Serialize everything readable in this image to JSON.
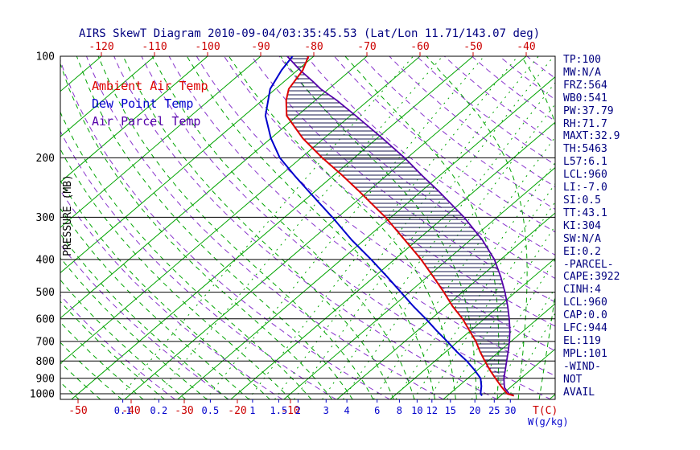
{
  "title": "AIRS SkewT Diagram 2010-09-04/03:35:45.53 (Lat/Lon 11.71/143.07 deg)",
  "legend": [
    {
      "label": "Ambient Air Temp",
      "color": "#dd0000"
    },
    {
      "label": "Dew Point Temp",
      "color": "#0000cc"
    },
    {
      "label": "Air Parcel Temp",
      "color": "#5500aa"
    }
  ],
  "stats": [
    "TP:100",
    "MW:N/A",
    "FRZ:564",
    "WB0:541",
    "PW:37.79",
    "RH:71.7",
    "MAXT:32.9",
    "TH:5463",
    "L57:6.1",
    "LCL:960",
    "LI:-7.0",
    "SI:0.5",
    "TT:43.1",
    "KI:304",
    "SW:N/A",
    "EI:0.2",
    "-PARCEL-",
    "CAPE:3922",
    "CINH:4",
    "LCL:960",
    "CAP:0.0",
    "LFC:944",
    "EL:119",
    "MPL:101",
    "-WIND-",
    "NOT",
    "AVAIL"
  ],
  "colors": {
    "title": "#000080",
    "stats": "#000080",
    "isotherm": "#00a400",
    "moist_adiabat": "#00a400",
    "mixing_ratio": "#00a400",
    "dry_adiabat": "#8833cc",
    "pressure_line": "#000000",
    "frame": "#000000",
    "hatch": "#15154d",
    "top_label": "#cc0000",
    "bottom_temp_label": "#cc0000",
    "mixing_label": "#0000cc",
    "pressure_label": "#000000"
  },
  "chart_data": {
    "type": "line",
    "chart_kind": "skewt_log_p",
    "x_axis": {
      "unit_label": "T(C)",
      "top_ticks": [
        -120,
        -110,
        -100,
        -90,
        -80,
        -70,
        -60,
        -50,
        -40
      ],
      "bottom_ticks": [
        -50,
        -40,
        -30,
        -20,
        -10
      ],
      "mixing_ratio_ticks": [
        0.1,
        0.2,
        0.5,
        1,
        1.5,
        2,
        3,
        4,
        6,
        8,
        10,
        12,
        15,
        20,
        25,
        30
      ],
      "mixing_unit_label": "W(g/kg)"
    },
    "y_axis": {
      "label": "PRESSURE (MB)",
      "scale": "log",
      "ticks": [
        100,
        200,
        300,
        400,
        500,
        600,
        700,
        800,
        900,
        1000
      ],
      "range": [
        100,
        1040
      ]
    },
    "grid": {
      "isotherm_min": -200,
      "isotherm_max": 40,
      "isotherm_step": 10,
      "dry_adiabat_min_K": 240,
      "dry_adiabat_max_K": 450,
      "dry_adiabat_step_K": 10,
      "moist_adiabat_min_C": -55,
      "moist_adiabat_max_C": 41,
      "moist_adiabat_step_C": 4
    },
    "series": [
      {
        "name": "Ambient Air Temp",
        "color": "#dd0000",
        "width": 2,
        "points": [
          [
            1013,
            32.5
          ],
          [
            1000,
            30.8
          ],
          [
            950,
            28.0
          ],
          [
            900,
            25.2
          ],
          [
            850,
            22.3
          ],
          [
            800,
            19.4
          ],
          [
            750,
            16.4
          ],
          [
            700,
            13.4
          ],
          [
            650,
            9.8
          ],
          [
            600,
            5.9
          ],
          [
            550,
            1.2
          ],
          [
            500,
            -3.5
          ],
          [
            450,
            -8.9
          ],
          [
            400,
            -15.0
          ],
          [
            350,
            -22.4
          ],
          [
            300,
            -31.0
          ],
          [
            250,
            -42.0
          ],
          [
            225,
            -48.5
          ],
          [
            200,
            -56.0
          ],
          [
            175,
            -64.0
          ],
          [
            150,
            -72.0
          ],
          [
            135,
            -75.5
          ],
          [
            125,
            -77.5
          ],
          [
            110,
            -79.0
          ],
          [
            100,
            -81.0
          ]
        ]
      },
      {
        "name": "Dew Point Temp",
        "color": "#0000cc",
        "width": 2,
        "points": [
          [
            1013,
            26.5
          ],
          [
            1000,
            25.8
          ],
          [
            950,
            24.3
          ],
          [
            900,
            22.4
          ],
          [
            850,
            19.4
          ],
          [
            800,
            16.0
          ],
          [
            750,
            12.0
          ],
          [
            700,
            8.0
          ],
          [
            650,
            3.6
          ],
          [
            600,
            -1.0
          ],
          [
            550,
            -6.2
          ],
          [
            500,
            -11.6
          ],
          [
            450,
            -17.6
          ],
          [
            400,
            -24.4
          ],
          [
            350,
            -32.4
          ],
          [
            300,
            -41.0
          ],
          [
            250,
            -51.5
          ],
          [
            225,
            -57.5
          ],
          [
            200,
            -64.0
          ],
          [
            175,
            -70.0
          ],
          [
            150,
            -76.0
          ],
          [
            125,
            -81.0
          ],
          [
            110,
            -83.0
          ],
          [
            100,
            -84.0
          ]
        ]
      },
      {
        "name": "Air Parcel Temp",
        "color": "#5500aa",
        "width": 1.8,
        "points": [
          [
            1013,
            32.5
          ],
          [
            1000,
            31.2
          ],
          [
            980,
            30.1
          ],
          [
            960,
            29.0
          ],
          [
            944,
            28.4
          ],
          [
            900,
            26.8
          ],
          [
            850,
            25.2
          ],
          [
            800,
            23.5
          ],
          [
            750,
            21.7
          ],
          [
            700,
            19.7
          ],
          [
            650,
            17.4
          ],
          [
            600,
            14.7
          ],
          [
            550,
            11.6
          ],
          [
            500,
            8.0
          ],
          [
            450,
            3.8
          ],
          [
            400,
            -1.2
          ],
          [
            350,
            -7.8
          ],
          [
            300,
            -16.2
          ],
          [
            250,
            -27.0
          ],
          [
            225,
            -33.5
          ],
          [
            200,
            -40.5
          ],
          [
            175,
            -49.0
          ],
          [
            150,
            -59.0
          ],
          [
            135,
            -66.0
          ],
          [
            125,
            -71.5
          ],
          [
            119,
            -74.5
          ],
          [
            110,
            -79.5
          ],
          [
            100,
            -85.0
          ]
        ]
      }
    ]
  }
}
